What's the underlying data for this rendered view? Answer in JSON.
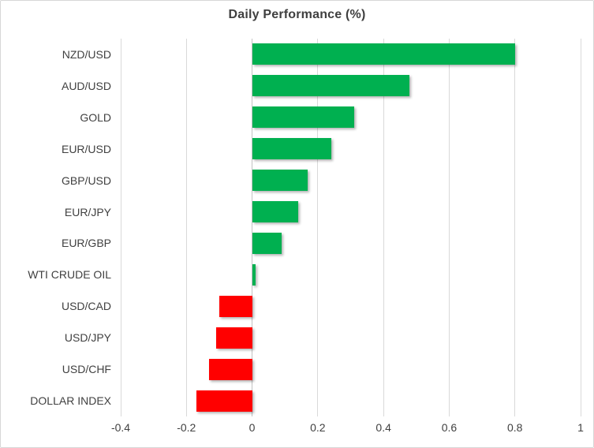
{
  "chart_data": {
    "type": "bar",
    "orientation": "horizontal",
    "title": "Daily Performance (%)",
    "categories": [
      "NZD/USD",
      "AUD/USD",
      "GOLD",
      "EUR/USD",
      "GBP/USD",
      "EUR/JPY",
      "EUR/GBP",
      "WTI CRUDE OIL",
      "USD/CAD",
      "USD/JPY",
      "USD/CHF",
      "DOLLAR INDEX"
    ],
    "values": [
      0.8,
      0.48,
      0.31,
      0.24,
      0.17,
      0.14,
      0.09,
      0.01,
      -0.1,
      -0.11,
      -0.13,
      -0.17
    ],
    "xlabel": "",
    "ylabel": "",
    "xlim": [
      -0.4,
      1.0
    ],
    "xticks": {
      "values": [
        -0.4,
        -0.2,
        0,
        0.2,
        0.4,
        0.6,
        0.8,
        1.0
      ],
      "labels": [
        "-0.4",
        "-0.2",
        "0",
        "0.2",
        "0.4",
        "0.6",
        "0.8",
        "1"
      ]
    },
    "grid": true,
    "legend": false,
    "colors": {
      "positive": "#00B050",
      "negative": "#FF0000",
      "gridline": "#D9D9D9",
      "zero_line": "#C3C3C3",
      "text": "#404040",
      "title_text": "#3F3F3F",
      "border": "#D7D7D7",
      "background": "#FFFFFF"
    }
  }
}
